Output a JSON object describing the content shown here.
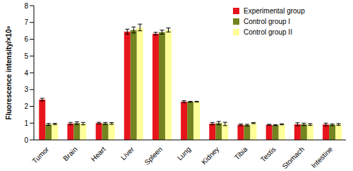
{
  "chart_data": {
    "type": "bar",
    "y_label": "Fluorescence intensity/×10⁸",
    "categories": [
      "Tumor",
      "Brain",
      "Heart",
      "Liver",
      "Spleen",
      "Lung",
      "Kidney",
      "Tibia",
      "Testis",
      "Stomach",
      "Intestine"
    ],
    "series": [
      {
        "name": "Experimental group",
        "color": "#e8141c",
        "values": [
          2.4,
          0.97,
          1.0,
          6.45,
          6.33,
          2.28,
          0.97,
          0.9,
          0.9,
          0.93,
          0.92
        ],
        "errors": [
          0.08,
          0.07,
          0.05,
          0.15,
          0.08,
          0.06,
          0.07,
          0.05,
          0.03,
          0.09,
          0.08
        ]
      },
      {
        "name": "Control group I",
        "color": "#738420",
        "values": [
          0.92,
          1.0,
          0.98,
          6.55,
          6.42,
          2.27,
          1.0,
          0.88,
          0.88,
          0.93,
          0.9
        ],
        "errors": [
          0.06,
          0.08,
          0.06,
          0.18,
          0.12,
          0.03,
          0.1,
          0.05,
          0.03,
          0.07,
          0.05
        ]
      },
      {
        "name": "Control group II",
        "color": "#ffff99",
        "values": [
          0.95,
          0.97,
          0.98,
          6.7,
          6.55,
          2.28,
          0.95,
          1.0,
          0.93,
          0.92,
          0.92
        ],
        "errors": [
          0.04,
          0.07,
          0.05,
          0.2,
          0.12,
          0.02,
          0.1,
          0.03,
          0.03,
          0.05,
          0.05
        ]
      }
    ],
    "ylim": [
      0,
      8
    ],
    "yticks": [
      0,
      1,
      2,
      3,
      4,
      5,
      6,
      7,
      8
    ],
    "grid": false,
    "legend": "upper right"
  }
}
